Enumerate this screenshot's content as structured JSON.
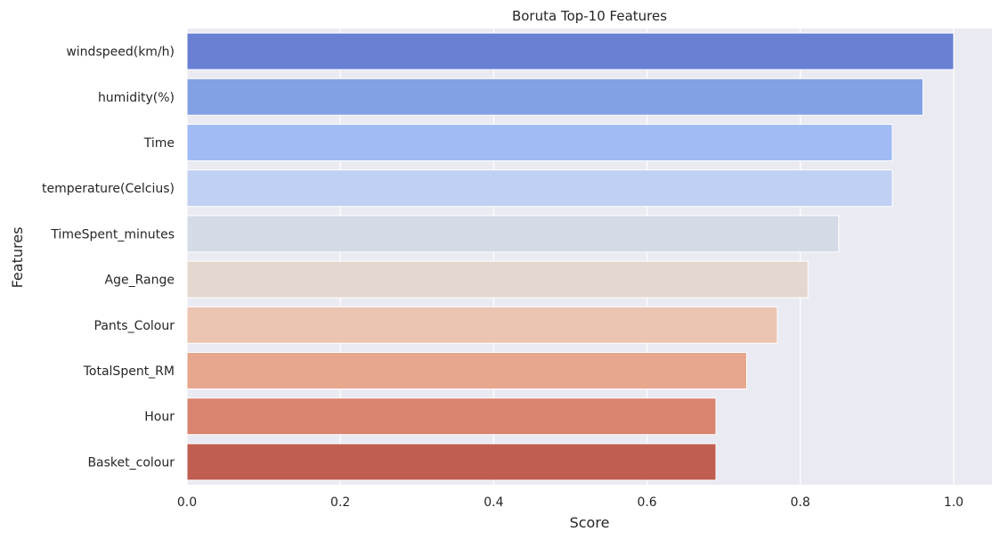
{
  "chart_data": {
    "type": "bar",
    "orientation": "horizontal",
    "title": "Boruta Top-10 Features",
    "xlabel": "Score",
    "ylabel": "Features",
    "xlim": [
      0,
      1.05
    ],
    "xticks": [
      0.0,
      0.2,
      0.4,
      0.6,
      0.8,
      1.0
    ],
    "xtick_labels": [
      "0.0",
      "0.2",
      "0.4",
      "0.6",
      "0.8",
      "1.0"
    ],
    "grid": true,
    "categories": [
      "windspeed(km/h)",
      "humidity(%)",
      "Time",
      "temperature(Celcius)",
      "TimeSpent_minutes",
      "Age_Range",
      "Pants_Colour",
      "TotalSpent_RM",
      "Hour",
      "Basket_colour"
    ],
    "values": [
      1.0,
      0.96,
      0.92,
      0.92,
      0.85,
      0.81,
      0.77,
      0.73,
      0.69,
      0.69
    ],
    "colors": [
      "#6a80d4",
      "#84a0e5",
      "#a1bbf4",
      "#bfd0f2",
      "#d4dae6",
      "#e4d7cf",
      "#ebc4b2",
      "#e6a78e",
      "#d9846f",
      "#c15e52"
    ],
    "background": "#eaeaf2"
  }
}
